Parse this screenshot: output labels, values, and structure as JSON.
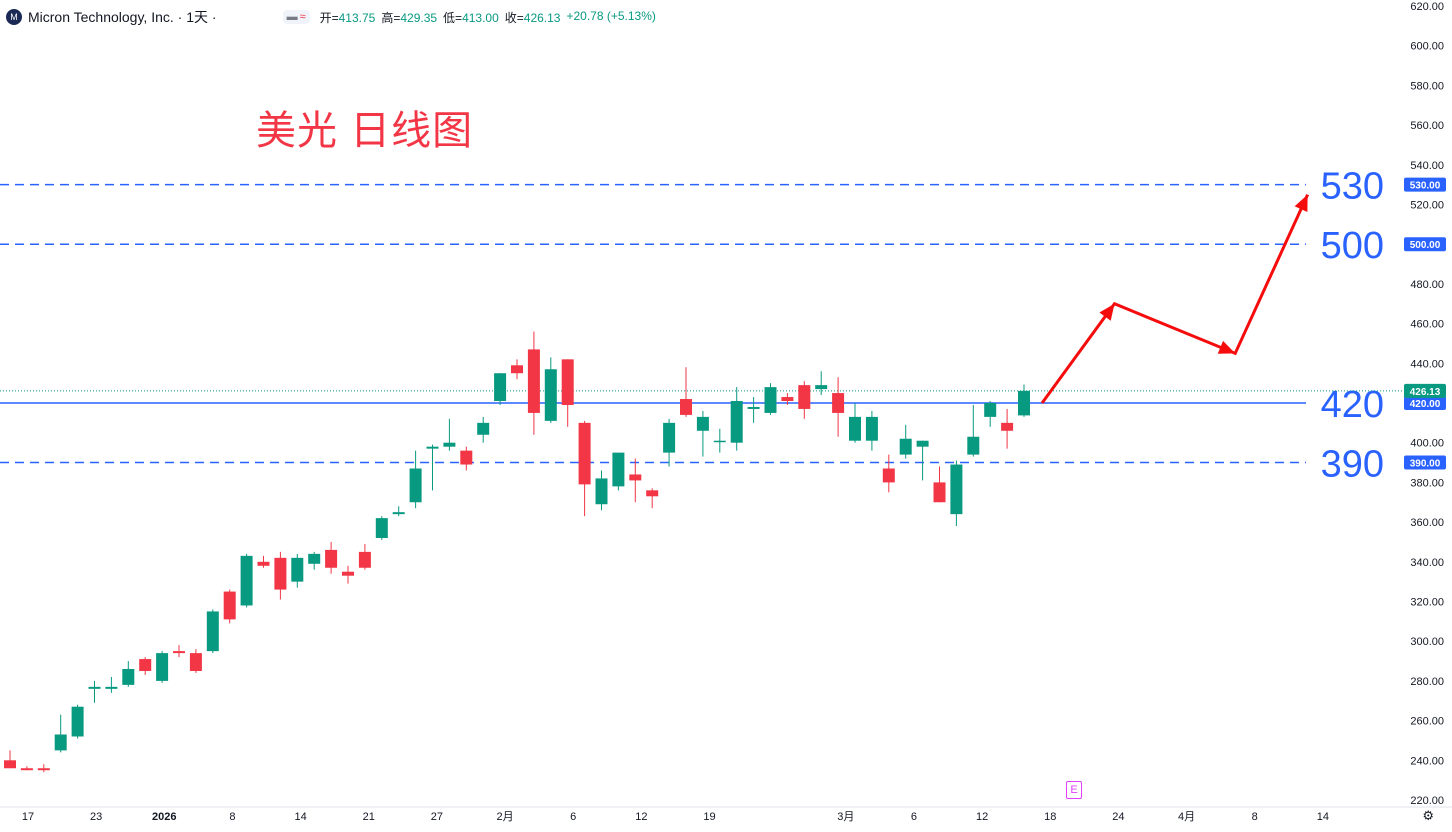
{
  "header": {
    "logo_text": "M",
    "symbol_title": "Micron Technology, Inc. · 1天 ·",
    "pill_a": "▬",
    "pill_b": "≈",
    "ohlc": [
      {
        "label": "开=",
        "value": "413.75"
      },
      {
        "label": "高=",
        "value": "429.35"
      },
      {
        "label": "低=",
        "value": "413.00"
      },
      {
        "label": "收=",
        "value": "426.13"
      }
    ],
    "change": "+20.78 (+5.13%)"
  },
  "annotation_title": "美光 日线图",
  "event_marker": "E",
  "settings_icon": "gear-icon",
  "colors": {
    "up": "#089981",
    "down": "#f23645",
    "level": "#2962ff",
    "arrow": "#f50c0c"
  },
  "chart_data": {
    "type": "candlestick",
    "y_axis": {
      "min": 220,
      "max": 620,
      "step": 20,
      "decimals": 2
    },
    "x_ticks": [
      "17",
      "23",
      "2026",
      "8",
      "14",
      "21",
      "27",
      "2月",
      "6",
      "12",
      "19",
      "",
      "3月",
      "6",
      "12",
      "18",
      "24",
      "4月",
      "8",
      "14"
    ],
    "candles": [
      {
        "o": 240,
        "h": 245,
        "l": 236,
        "c": 236
      },
      {
        "o": 236,
        "h": 237,
        "l": 235,
        "c": 235
      },
      {
        "o": 236,
        "h": 238,
        "l": 234,
        "c": 235
      },
      {
        "o": 245,
        "h": 263,
        "l": 244,
        "c": 253
      },
      {
        "o": 252,
        "h": 268,
        "l": 251,
        "c": 267
      },
      {
        "o": 276,
        "h": 280,
        "l": 269,
        "c": 277
      },
      {
        "o": 276,
        "h": 282,
        "l": 274,
        "c": 277
      },
      {
        "o": 278,
        "h": 290,
        "l": 277,
        "c": 286
      },
      {
        "o": 291,
        "h": 292,
        "l": 283,
        "c": 285
      },
      {
        "o": 280,
        "h": 295,
        "l": 279,
        "c": 294
      },
      {
        "o": 295,
        "h": 298,
        "l": 292,
        "c": 294
      },
      {
        "o": 294,
        "h": 296,
        "l": 284,
        "c": 285
      },
      {
        "o": 295,
        "h": 316,
        "l": 294,
        "c": 315
      },
      {
        "o": 325,
        "h": 326,
        "l": 309,
        "c": 311
      },
      {
        "o": 318,
        "h": 344,
        "l": 317,
        "c": 343
      },
      {
        "o": 340,
        "h": 343,
        "l": 337,
        "c": 338
      },
      {
        "o": 342,
        "h": 345,
        "l": 321,
        "c": 326
      },
      {
        "o": 330,
        "h": 344,
        "l": 327,
        "c": 342
      },
      {
        "o": 339,
        "h": 345,
        "l": 336,
        "c": 344
      },
      {
        "o": 346,
        "h": 350,
        "l": 334,
        "c": 337
      },
      {
        "o": 335,
        "h": 338,
        "l": 329,
        "c": 333
      },
      {
        "o": 345,
        "h": 349,
        "l": 336,
        "c": 337
      },
      {
        "o": 352,
        "h": 363,
        "l": 351,
        "c": 362
      },
      {
        "o": 364,
        "h": 368,
        "l": 363,
        "c": 365
      },
      {
        "o": 370,
        "h": 396,
        "l": 367,
        "c": 387
      },
      {
        "o": 397,
        "h": 399,
        "l": 376,
        "c": 398
      },
      {
        "o": 398,
        "h": 412,
        "l": 396,
        "c": 400
      },
      {
        "o": 396,
        "h": 398,
        "l": 386,
        "c": 389
      },
      {
        "o": 404,
        "h": 413,
        "l": 400,
        "c": 410
      },
      {
        "o": 421,
        "h": 435,
        "l": 419,
        "c": 435
      },
      {
        "o": 439,
        "h": 442,
        "l": 432,
        "c": 435
      },
      {
        "o": 447,
        "h": 456,
        "l": 404,
        "c": 415
      },
      {
        "o": 411,
        "h": 443,
        "l": 410,
        "c": 437
      },
      {
        "o": 442,
        "h": 442,
        "l": 408,
        "c": 419
      },
      {
        "o": 410,
        "h": 411,
        "l": 363,
        "c": 379
      },
      {
        "o": 369,
        "h": 386,
        "l": 366,
        "c": 382
      },
      {
        "o": 378,
        "h": 394,
        "l": 376,
        "c": 395
      },
      {
        "o": 384,
        "h": 392,
        "l": 370,
        "c": 381
      },
      {
        "o": 376,
        "h": 377,
        "l": 367,
        "c": 373
      },
      {
        "o": 395,
        "h": 412,
        "l": 388,
        "c": 410
      },
      {
        "o": 422,
        "h": 438,
        "l": 413,
        "c": 414
      },
      {
        "o": 406,
        "h": 416,
        "l": 393,
        "c": 413
      },
      {
        "o": 401,
        "h": 407,
        "l": 395,
        "c": 401
      },
      {
        "o": 400,
        "h": 428,
        "l": 396,
        "c": 421
      },
      {
        "o": 417,
        "h": 423,
        "l": 410,
        "c": 418
      },
      {
        "o": 415,
        "h": 430,
        "l": 414,
        "c": 428
      },
      {
        "o": 423,
        "h": 425,
        "l": 419,
        "c": 421
      },
      {
        "o": 429,
        "h": 431,
        "l": 412,
        "c": 417
      },
      {
        "o": 427,
        "h": 436,
        "l": 424,
        "c": 429
      },
      {
        "o": 425,
        "h": 433,
        "l": 403,
        "c": 415
      },
      {
        "o": 401,
        "h": 420,
        "l": 400,
        "c": 413
      },
      {
        "o": 401,
        "h": 416,
        "l": 396,
        "c": 413
      },
      {
        "o": 387,
        "h": 394,
        "l": 375,
        "c": 380
      },
      {
        "o": 394,
        "h": 409,
        "l": 392,
        "c": 402
      },
      {
        "o": 398,
        "h": 401,
        "l": 381,
        "c": 401
      },
      {
        "o": 380,
        "h": 388,
        "l": 370,
        "c": 370
      },
      {
        "o": 364,
        "h": 391,
        "l": 358,
        "c": 389
      },
      {
        "o": 394,
        "h": 419,
        "l": 393,
        "c": 403
      },
      {
        "o": 413,
        "h": 421,
        "l": 408,
        "c": 420
      },
      {
        "o": 410,
        "h": 417,
        "l": 397,
        "c": 406
      },
      {
        "o": 413.75,
        "h": 429.35,
        "l": 413,
        "c": 426.13
      }
    ],
    "levels": [
      {
        "value": 530,
        "label": "530",
        "tag": "530.00",
        "style": "dashed"
      },
      {
        "value": 500,
        "label": "500",
        "tag": "500.00",
        "style": "dashed"
      },
      {
        "value": 420,
        "label": "420",
        "tag": "420.00",
        "style": "solid"
      },
      {
        "value": 390,
        "label": "390",
        "tag": "390.00",
        "style": "dashed"
      }
    ],
    "last_price": "426.13",
    "projection_path": [
      {
        "x": "3/14",
        "y": 420
      },
      {
        "x": "3/20",
        "y": 470
      },
      {
        "x": "3/30",
        "y": 445
      },
      {
        "x": "4/5",
        "y": 525
      }
    ]
  }
}
